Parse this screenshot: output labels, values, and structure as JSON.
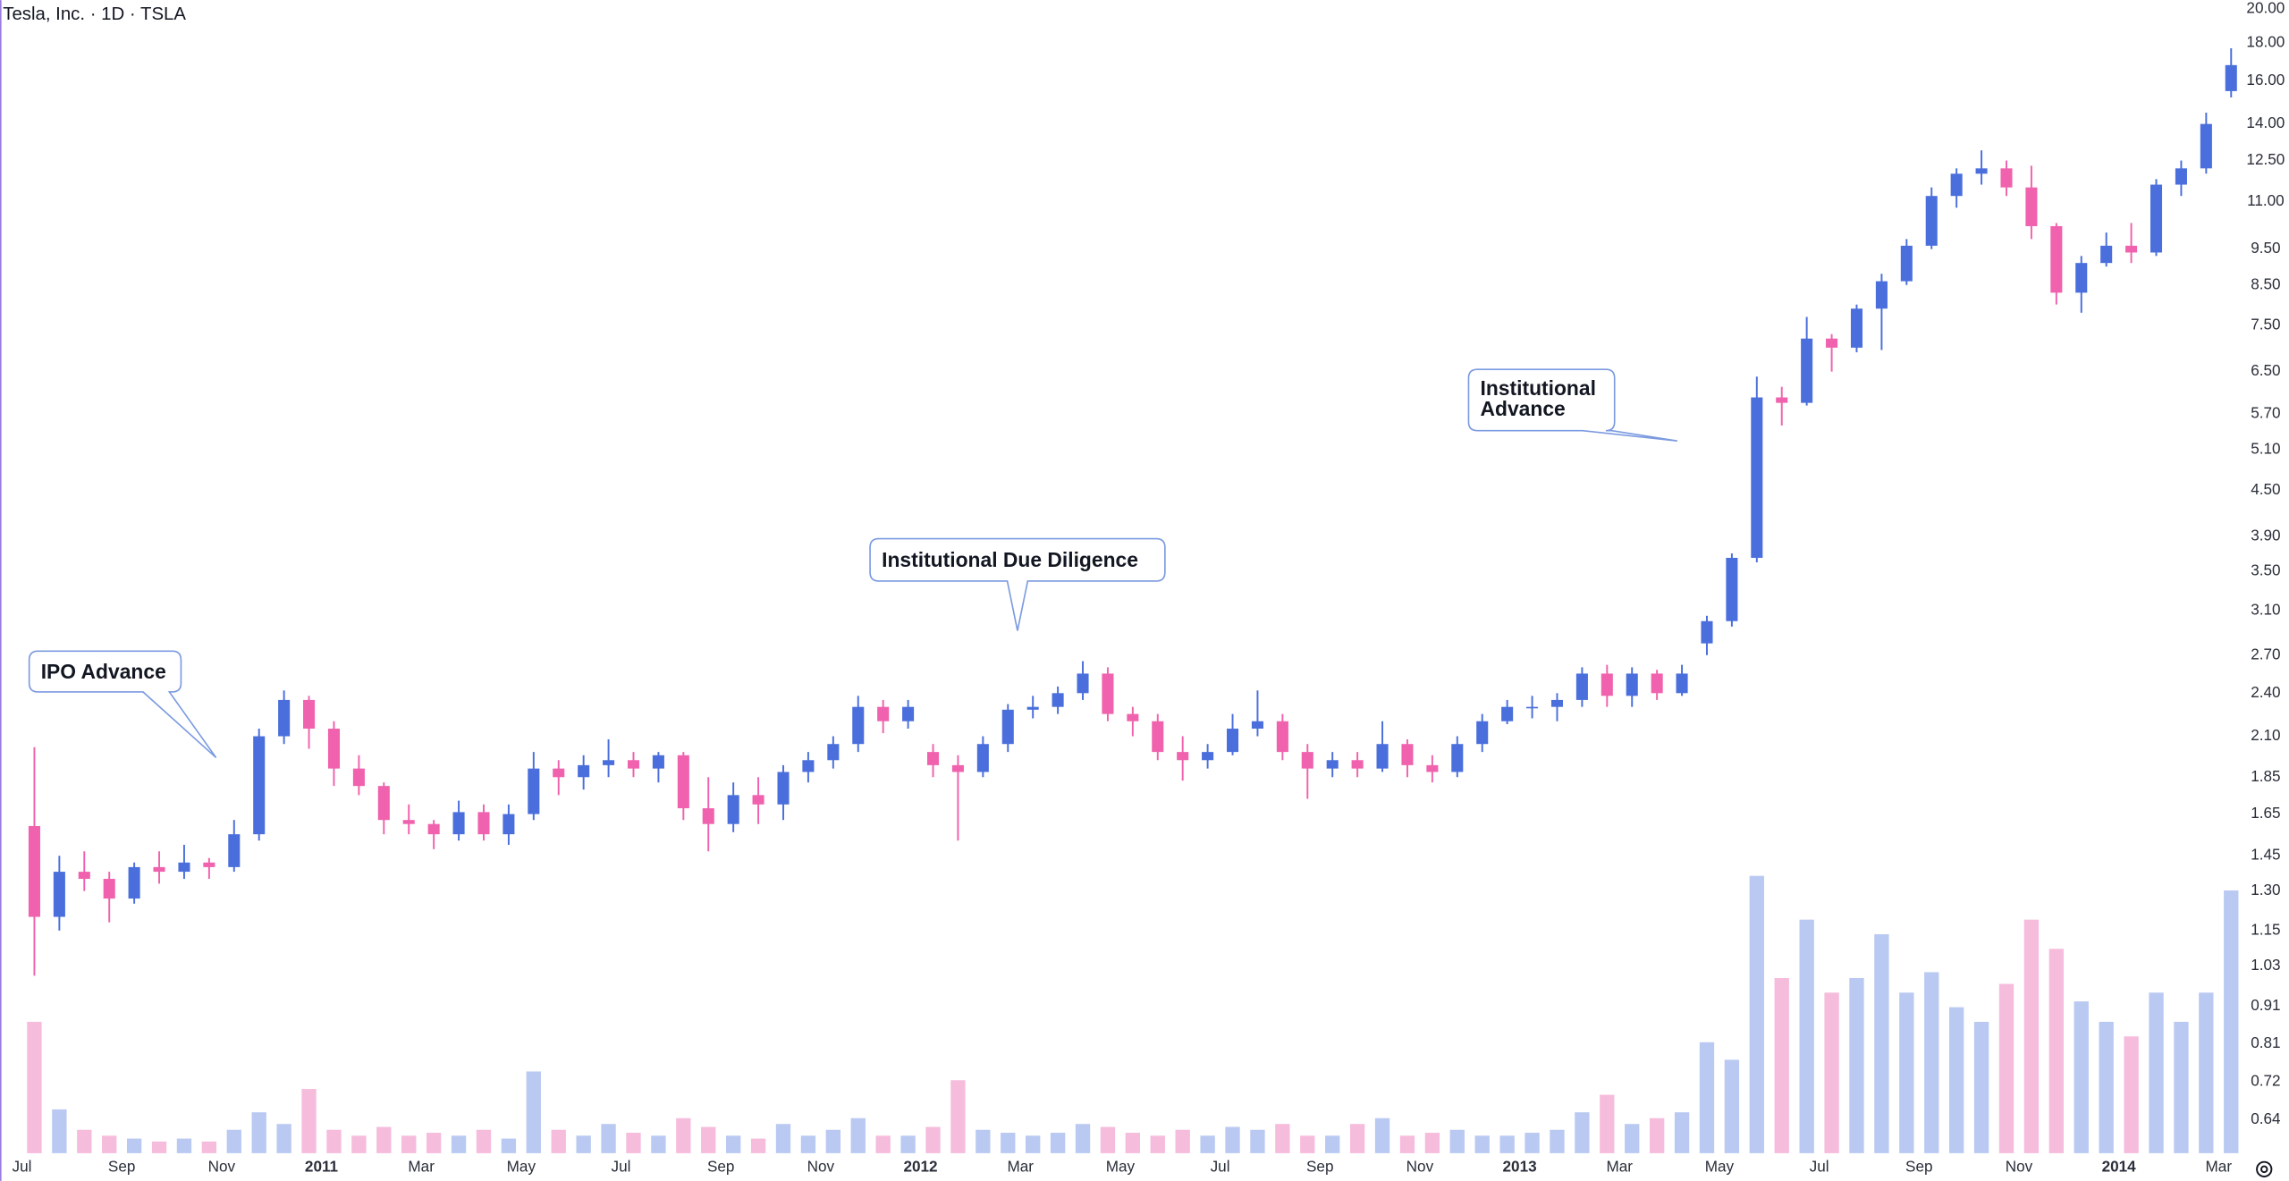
{
  "chart_data": {
    "type": "candlestick",
    "title": "Tesla, Inc. · 1D · TSLA",
    "log_scale": true,
    "grid": false,
    "up_color": "#4a6fdc",
    "down_color": "#f062ad",
    "volume_up_color": "#b9c9f2",
    "volume_down_color": "#f6bcdc",
    "categories": [
      "Jul",
      null,
      null,
      null,
      "Sep",
      null,
      null,
      null,
      "Nov",
      null,
      null,
      null,
      "2011",
      null,
      null,
      null,
      "Mar",
      null,
      null,
      null,
      "May",
      null,
      null,
      null,
      "Jul",
      null,
      null,
      null,
      "Sep",
      null,
      null,
      null,
      "Nov",
      null,
      null,
      null,
      "2012",
      null,
      null,
      null,
      "Mar",
      null,
      null,
      null,
      "May",
      null,
      null,
      null,
      "Jul",
      null,
      null,
      null,
      "Sep",
      null,
      null,
      null,
      "Nov",
      null,
      null,
      null,
      "2013",
      null,
      null,
      null,
      "Mar",
      null,
      null,
      null,
      "May",
      null,
      null,
      null,
      "Jul",
      null,
      null,
      null,
      "Sep",
      null,
      null,
      null,
      "Nov",
      null,
      null,
      null,
      "2014",
      null,
      null,
      null,
      "Mar"
    ],
    "open": [
      1.59,
      1.2,
      1.38,
      1.35,
      1.27,
      1.4,
      1.38,
      1.42,
      1.4,
      1.55,
      2.1,
      2.35,
      2.15,
      1.9,
      1.8,
      1.62,
      1.6,
      1.55,
      1.66,
      1.55,
      1.65,
      1.9,
      1.85,
      1.92,
      1.95,
      1.9,
      1.98,
      1.68,
      1.6,
      1.75,
      1.7,
      1.88,
      1.95,
      2.05,
      2.3,
      2.2,
      2.0,
      1.92,
      1.88,
      2.05,
      2.28,
      2.3,
      2.4,
      2.55,
      2.25,
      2.2,
      2.0,
      1.95,
      2.0,
      2.15,
      2.2,
      2.0,
      1.9,
      1.95,
      1.9,
      2.05,
      1.92,
      1.88,
      2.05,
      2.2,
      2.3,
      2.3,
      2.35,
      2.55,
      2.38,
      2.55,
      2.4,
      2.8,
      3.0,
      3.65,
      6.0,
      5.9,
      7.2,
      7.0,
      7.9,
      8.6,
      9.6,
      11.2,
      12.0,
      12.2,
      11.5,
      10.2,
      8.3,
      9.1,
      9.6,
      9.4,
      11.6,
      12.2,
      15.5
    ],
    "high": [
      2.03,
      1.45,
      1.47,
      1.38,
      1.42,
      1.47,
      1.5,
      1.44,
      1.62,
      2.15,
      2.42,
      2.38,
      2.2,
      1.98,
      1.82,
      1.7,
      1.62,
      1.72,
      1.7,
      1.7,
      2.0,
      1.95,
      1.98,
      2.08,
      2.0,
      2.0,
      2.0,
      1.85,
      1.82,
      1.85,
      1.92,
      2.0,
      2.1,
      2.38,
      2.35,
      2.35,
      2.05,
      1.98,
      2.1,
      2.32,
      2.38,
      2.45,
      2.65,
      2.6,
      2.3,
      2.25,
      2.1,
      2.05,
      2.25,
      2.42,
      2.25,
      2.05,
      2.0,
      2.0,
      2.2,
      2.08,
      1.98,
      2.1,
      2.25,
      2.35,
      2.38,
      2.4,
      2.6,
      2.62,
      2.6,
      2.58,
      2.62,
      3.05,
      3.7,
      6.4,
      6.2,
      7.7,
      7.3,
      8.0,
      8.8,
      9.8,
      11.5,
      12.2,
      12.9,
      12.5,
      12.3,
      10.3,
      9.3,
      10.0,
      10.3,
      11.8,
      12.5,
      14.5,
      17.7
    ],
    "low": [
      1.0,
      1.15,
      1.3,
      1.18,
      1.25,
      1.33,
      1.35,
      1.35,
      1.38,
      1.52,
      2.05,
      2.02,
      1.8,
      1.75,
      1.55,
      1.55,
      1.48,
      1.52,
      1.52,
      1.5,
      1.62,
      1.75,
      1.78,
      1.85,
      1.85,
      1.82,
      1.62,
      1.47,
      1.56,
      1.6,
      1.62,
      1.82,
      1.9,
      2.0,
      2.12,
      2.15,
      1.85,
      1.52,
      1.85,
      2.0,
      2.22,
      2.25,
      2.35,
      2.2,
      2.1,
      1.95,
      1.83,
      1.9,
      1.98,
      2.1,
      1.95,
      1.73,
      1.85,
      1.85,
      1.88,
      1.85,
      1.82,
      1.85,
      2.0,
      2.18,
      2.22,
      2.2,
      2.3,
      2.3,
      2.3,
      2.35,
      2.38,
      2.7,
      2.95,
      3.6,
      5.5,
      5.85,
      6.5,
      6.9,
      6.95,
      8.5,
      9.5,
      10.8,
      11.6,
      11.2,
      9.8,
      8.0,
      7.8,
      9.0,
      9.1,
      9.3,
      11.2,
      12.0,
      15.2
    ],
    "close": [
      1.2,
      1.38,
      1.35,
      1.27,
      1.4,
      1.38,
      1.42,
      1.4,
      1.55,
      2.1,
      2.35,
      2.15,
      1.9,
      1.8,
      1.62,
      1.6,
      1.55,
      1.66,
      1.55,
      1.65,
      1.9,
      1.85,
      1.92,
      1.95,
      1.9,
      1.98,
      1.68,
      1.6,
      1.75,
      1.7,
      1.88,
      1.95,
      2.05,
      2.3,
      2.2,
      2.3,
      1.92,
      1.88,
      2.05,
      2.28,
      2.3,
      2.4,
      2.55,
      2.25,
      2.2,
      2.0,
      1.95,
      2.0,
      2.15,
      2.2,
      2.0,
      1.9,
      1.95,
      1.9,
      2.05,
      1.92,
      1.88,
      2.05,
      2.2,
      2.3,
      2.3,
      2.35,
      2.55,
      2.38,
      2.55,
      2.4,
      2.55,
      3.0,
      3.65,
      6.0,
      5.9,
      7.2,
      7.0,
      7.9,
      8.6,
      9.6,
      11.2,
      12.0,
      12.2,
      11.5,
      10.2,
      8.3,
      9.1,
      9.6,
      9.4,
      11.6,
      12.2,
      14.0,
      16.8
    ],
    "volume": [
      45,
      15,
      8,
      6,
      5,
      4,
      5,
      4,
      8,
      14,
      10,
      22,
      8,
      6,
      9,
      6,
      7,
      6,
      8,
      5,
      28,
      8,
      6,
      10,
      7,
      6,
      12,
      9,
      6,
      5,
      10,
      6,
      8,
      12,
      6,
      6,
      9,
      25,
      8,
      7,
      6,
      7,
      10,
      9,
      7,
      6,
      8,
      6,
      9,
      8,
      10,
      6,
      6,
      10,
      12,
      6,
      7,
      8,
      6,
      6,
      7,
      8,
      14,
      20,
      10,
      12,
      14,
      38,
      32,
      95,
      60,
      80,
      55,
      60,
      75,
      55,
      62,
      50,
      45,
      58,
      80,
      70,
      52,
      45,
      40,
      55,
      45,
      55,
      90
    ],
    "vlim": [
      0,
      100
    ],
    "ylim": [
      0.577,
      20.55
    ],
    "yticks": [
      {
        "value": 20,
        "label": "20.00"
      },
      {
        "value": 18,
        "label": "18.00"
      },
      {
        "value": 16,
        "label": "16.00"
      },
      {
        "value": 14,
        "label": "14.00"
      },
      {
        "value": 12.5,
        "label": "12.50"
      },
      {
        "value": 11,
        "label": "11.00"
      },
      {
        "value": 9.5,
        "label": "9.50"
      },
      {
        "value": 8.5,
        "label": "8.50"
      },
      {
        "value": 7.5,
        "label": "7.50"
      },
      {
        "value": 6.5,
        "label": "6.50"
      },
      {
        "value": 5.7,
        "label": "5.70"
      },
      {
        "value": 5.1,
        "label": "5.10"
      },
      {
        "value": 4.5,
        "label": "4.50"
      },
      {
        "value": 3.9,
        "label": "3.90"
      },
      {
        "value": 3.5,
        "label": "3.50"
      },
      {
        "value": 3.1,
        "label": "3.10"
      },
      {
        "value": 2.7,
        "label": "2.70"
      },
      {
        "value": 2.4,
        "label": "2.40"
      },
      {
        "value": 2.1,
        "label": "2.10"
      },
      1.85,
      1.65,
      1.45,
      {
        "value": 1.3,
        "label": "1.30"
      },
      1.15,
      1.03,
      0.91,
      0.81,
      0.72,
      0.64
    ],
    "annotations": [
      {
        "text": "IPO Advance"
      },
      {
        "text": "Institutional Due Diligence"
      },
      {
        "text": "Institutional Advance"
      }
    ]
  }
}
